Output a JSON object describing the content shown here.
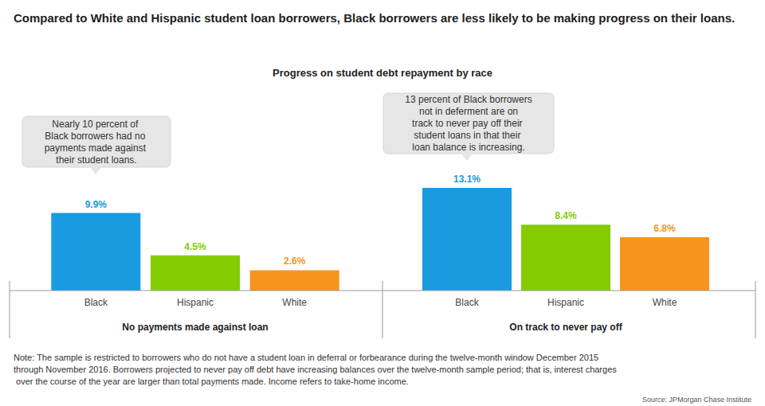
{
  "title": "Compared to White and Hispanic student loan borrowers, Black borrowers are less likely to be making progress on their loans.",
  "subtitle": "Progress on student debt repayment by race",
  "note": "Note: The sample is restricted to borrowers who do not have a student loan in deferral or forbearance during the twelve-month window December 2015 through November 2016. Borrowers projected to never pay off debt have increasing balances over the twelve-month sample period; that is, interest charges over the course of the year are larger than total payments made. Income refers to take-home income.",
  "source": "Source: JPMorgan Chase Institute",
  "chart_data": [
    {
      "type": "bar",
      "xlabel": "No payments made against loan",
      "annotation": "Nearly 10 percent of Black borrowers had no payments made against their student loans.",
      "categories": [
        "Black",
        "Hispanic",
        "White"
      ],
      "values": [
        9.9,
        4.5,
        2.6
      ],
      "value_labels": [
        "9.9%",
        "4.5%",
        "2.6%"
      ],
      "colors": [
        "#1a9be0",
        "#84cc00",
        "#f7941d"
      ],
      "data_labels": true,
      "tick_labels": "x"
    },
    {
      "type": "bar",
      "xlabel": "On track to never pay off",
      "annotation": "13 percent of Black borrowers not in deferment are on track to never pay off their student loans in that their loan balance is increasing.",
      "categories": [
        "Black",
        "Hispanic",
        "White"
      ],
      "values": [
        13.1,
        8.4,
        6.8
      ],
      "value_labels": [
        "13.1%",
        "8.4%",
        "6.8%"
      ],
      "colors": [
        "#1a9be0",
        "#84cc00",
        "#f7941d"
      ],
      "data_labels": true,
      "tick_labels": "x"
    }
  ]
}
